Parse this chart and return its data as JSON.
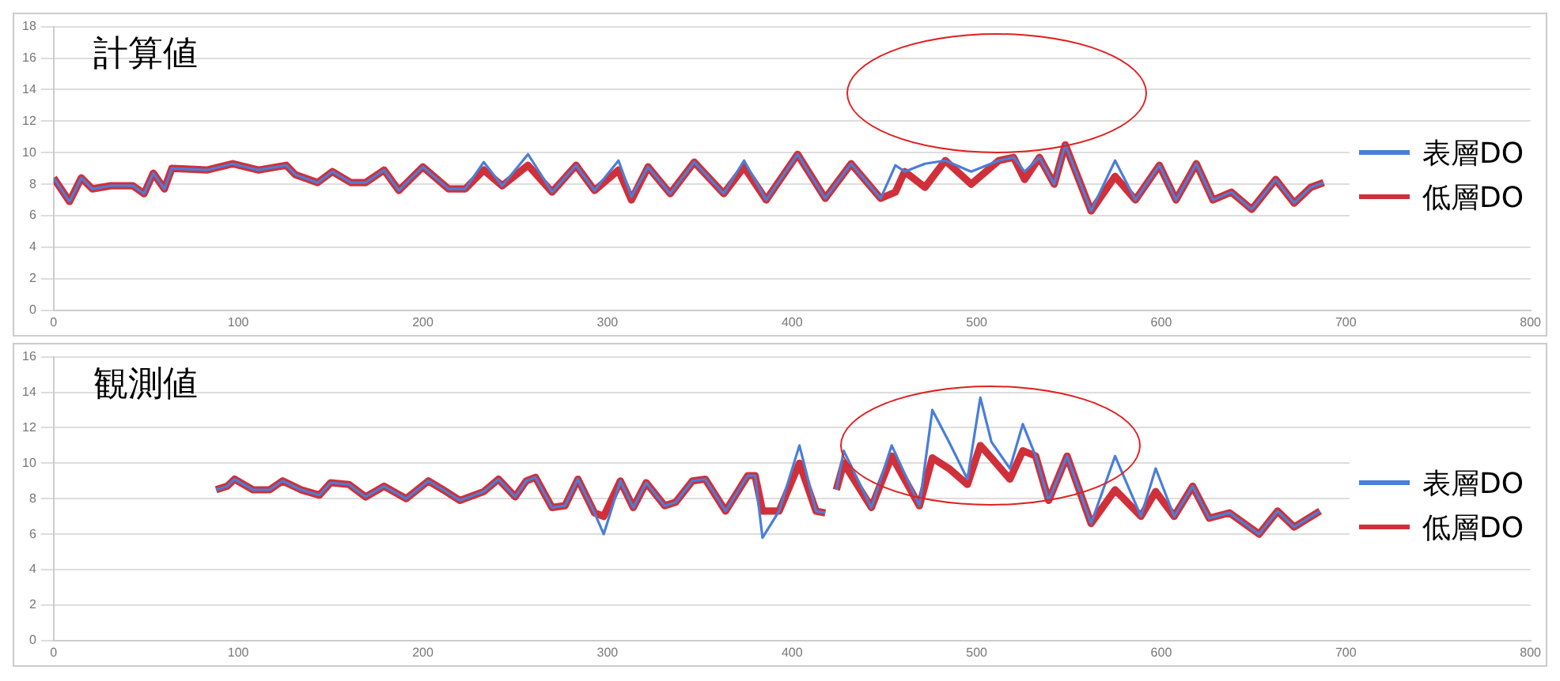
{
  "chart_data": [
    {
      "type": "line",
      "title": "計算値",
      "grid": "y",
      "legend": "right",
      "x": [
        0,
        8.6,
        15,
        21,
        31,
        43,
        49,
        54,
        60,
        64,
        83,
        97,
        111,
        126,
        131,
        143,
        151,
        161,
        169,
        179,
        187,
        200,
        214,
        223,
        233,
        243,
        257,
        270,
        283,
        293,
        306,
        313,
        322,
        334,
        347,
        363,
        374,
        386,
        403,
        418,
        432,
        448,
        456,
        461,
        472,
        483,
        497,
        512,
        520,
        526,
        534,
        542,
        548,
        562,
        575,
        586,
        599,
        608,
        619,
        628,
        638,
        649,
        662,
        672,
        681,
        688
      ],
      "xlim": [
        0,
        800
      ],
      "xticks": [
        0,
        100,
        200,
        300,
        400,
        500,
        600,
        700,
        800
      ],
      "ylim": [
        0,
        18
      ],
      "yticks": [
        0,
        2,
        4,
        6,
        8,
        10,
        12,
        14,
        16,
        18
      ],
      "series": [
        {
          "name": "表層DO",
          "color": "#4a7ed8",
          "values": [
            8.4,
            6.9,
            8.4,
            7.7,
            7.9,
            7.9,
            7.4,
            8.7,
            7.7,
            9.0,
            8.9,
            9.3,
            8.9,
            9.2,
            8.6,
            8.1,
            8.8,
            8.1,
            8.1,
            8.9,
            7.6,
            9.1,
            7.7,
            7.7,
            9.4,
            7.9,
            9.9,
            7.5,
            9.2,
            7.6,
            9.5,
            7.2,
            9.1,
            7.4,
            9.4,
            7.4,
            9.5,
            7.0,
            9.9,
            7.1,
            9.3,
            7.1,
            9.2,
            8.8,
            9.3,
            9.5,
            8.8,
            9.5,
            9.7,
            8.8,
            9.7,
            8.0,
            10.5,
            6.3,
            9.5,
            7.0,
            9.2,
            7.0,
            9.3,
            7.0,
            7.5,
            6.4,
            8.3,
            6.8,
            7.8,
            8.1
          ]
        },
        {
          "name": "低層DO",
          "color": "#d0303a",
          "values": [
            8.4,
            6.9,
            8.4,
            7.7,
            7.9,
            7.9,
            7.4,
            8.7,
            7.7,
            9.0,
            8.9,
            9.3,
            8.9,
            9.2,
            8.6,
            8.1,
            8.8,
            8.1,
            8.1,
            8.9,
            7.6,
            9.1,
            7.7,
            7.7,
            8.9,
            7.9,
            9.2,
            7.5,
            9.2,
            7.6,
            8.9,
            7.0,
            9.1,
            7.4,
            9.4,
            7.4,
            9.1,
            7.0,
            9.9,
            7.1,
            9.3,
            7.1,
            7.5,
            8.8,
            7.8,
            9.5,
            8.0,
            9.5,
            9.7,
            8.3,
            9.7,
            8.0,
            10.5,
            6.3,
            8.5,
            7.0,
            9.2,
            7.0,
            9.3,
            7.0,
            7.5,
            6.4,
            8.3,
            6.8,
            7.8,
            8.1
          ]
        }
      ]
    },
    {
      "type": "line",
      "title": "観測値",
      "grid": "y",
      "legend": "right",
      "x": [
        88,
        94,
        98,
        108,
        117,
        124,
        134,
        144,
        150,
        160,
        169,
        179,
        191,
        203,
        211,
        220,
        233,
        241,
        250,
        256,
        261,
        270,
        277,
        284,
        293,
        298,
        307,
        314,
        321,
        331,
        337,
        346,
        353,
        364,
        376,
        380,
        384,
        393,
        404,
        413,
        418,
        421,
        424,
        428,
        443,
        454,
        469,
        476,
        485,
        495,
        502,
        508,
        518,
        525,
        532,
        539,
        549,
        562,
        575,
        589,
        597,
        607,
        617,
        626,
        637,
        653,
        663,
        672,
        686
      ],
      "xlim": [
        0,
        800
      ],
      "xticks": [
        0,
        100,
        200,
        300,
        400,
        500,
        600,
        700,
        800
      ],
      "ylim": [
        0,
        16
      ],
      "yticks": [
        0,
        2,
        4,
        6,
        8,
        10,
        12,
        14,
        16
      ],
      "series": [
        {
          "name": "表層DO",
          "color": "#4a7ed8",
          "values": [
            8.5,
            8.7,
            9.1,
            8.5,
            8.5,
            9.0,
            8.5,
            8.2,
            8.9,
            8.8,
            8.1,
            8.7,
            8.0,
            9.0,
            8.5,
            7.9,
            8.4,
            9.1,
            8.1,
            9.0,
            9.2,
            7.5,
            7.6,
            9.1,
            7.2,
            6.0,
            9.0,
            7.5,
            8.9,
            7.6,
            7.8,
            9.0,
            9.1,
            7.3,
            9.3,
            9.3,
            5.8,
            7.3,
            11.0,
            7.3,
            7.2,
            null,
            8.5,
            10.7,
            7.5,
            11.0,
            7.6,
            13.0,
            11.2,
            9.1,
            13.7,
            11.2,
            9.7,
            12.2,
            10.4,
            7.9,
            10.4,
            6.6,
            10.4,
            7.0,
            9.7,
            7.0,
            8.7,
            6.9,
            7.2,
            6.0,
            7.3,
            6.4,
            7.3
          ]
        },
        {
          "name": "低層DO",
          "color": "#d0303a",
          "values": [
            8.5,
            8.7,
            9.1,
            8.5,
            8.5,
            9.0,
            8.5,
            8.2,
            8.9,
            8.8,
            8.1,
            8.7,
            8.0,
            9.0,
            8.5,
            7.9,
            8.4,
            9.1,
            8.1,
            9.0,
            9.2,
            7.5,
            7.6,
            9.1,
            7.2,
            7.0,
            9.0,
            7.5,
            8.9,
            7.6,
            7.8,
            9.0,
            9.1,
            7.3,
            9.3,
            9.3,
            7.3,
            7.3,
            10.0,
            7.3,
            7.2,
            null,
            8.5,
            10.0,
            7.5,
            10.4,
            7.6,
            10.3,
            9.7,
            8.8,
            11.0,
            10.3,
            9.1,
            10.7,
            10.4,
            7.9,
            10.4,
            6.6,
            8.5,
            7.0,
            8.4,
            7.0,
            8.7,
            6.9,
            7.2,
            6.0,
            7.3,
            6.4,
            7.3
          ]
        }
      ]
    }
  ]
}
